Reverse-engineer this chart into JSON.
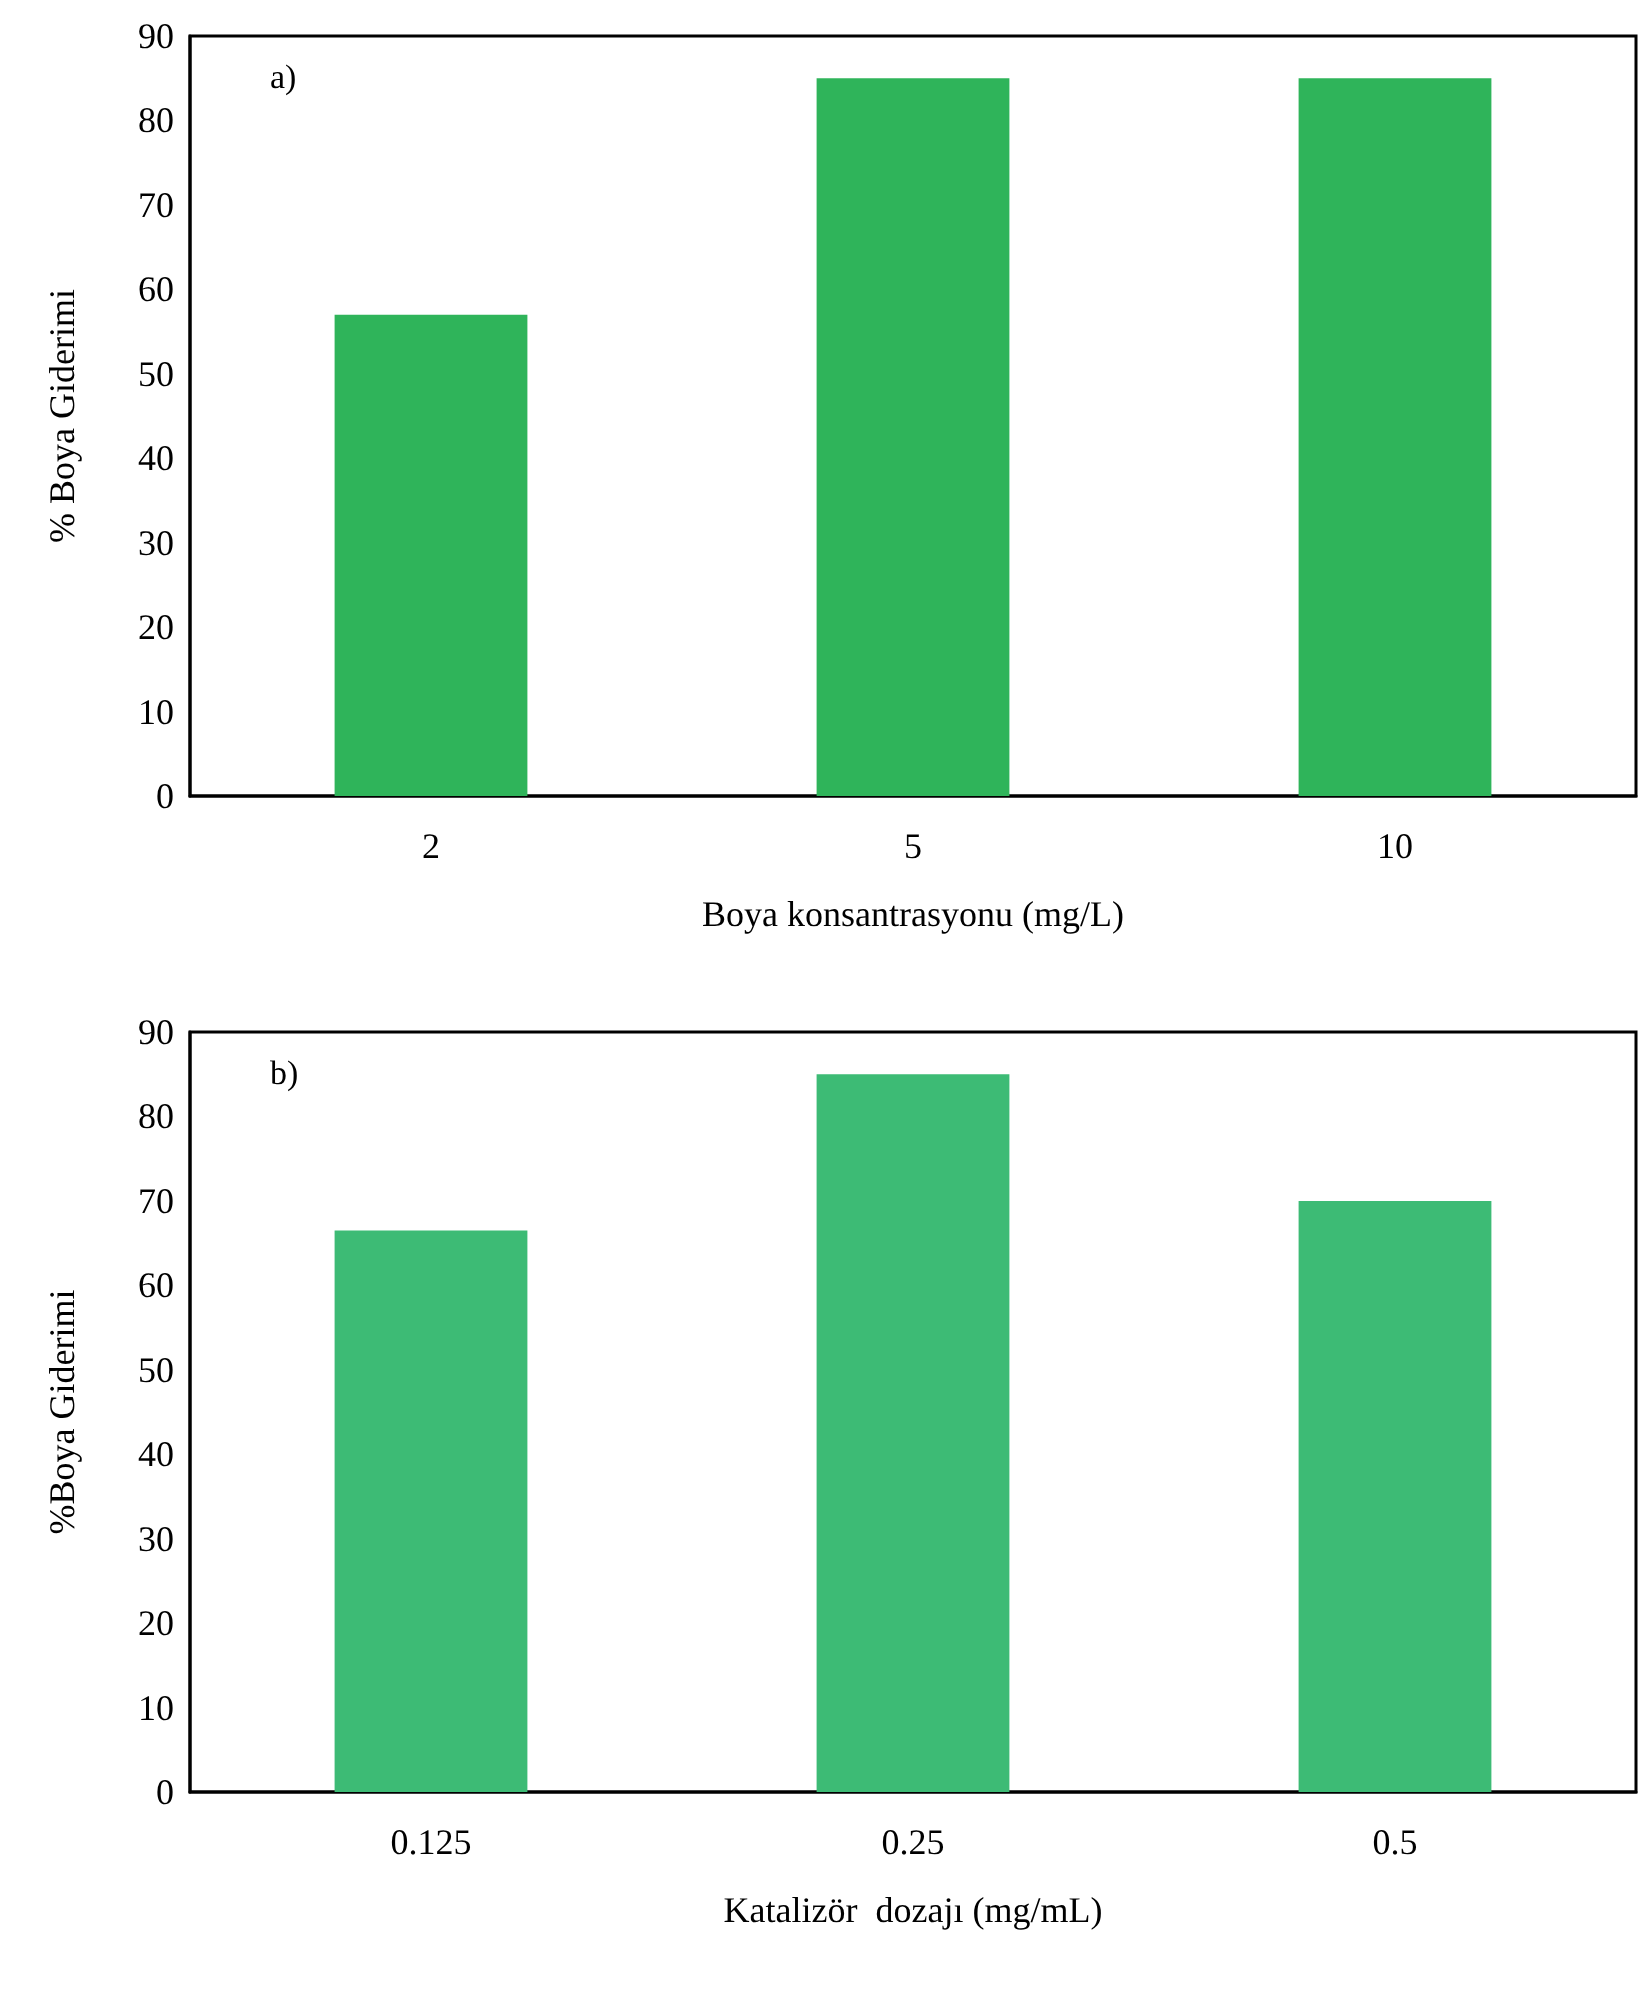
{
  "chart_data": [
    {
      "type": "bar",
      "categories": [
        "2",
        "5",
        "10"
      ],
      "values": [
        57,
        85,
        85
      ],
      "color": "#2fb45a",
      "xlabel": "Boya konsantrasyonu (mg/L)",
      "ylabel": "% Boya Giderimi",
      "ylim": [
        0,
        90
      ],
      "yticks": [
        0,
        10,
        20,
        30,
        40,
        50,
        60,
        70,
        80,
        90
      ],
      "grid": false,
      "annotations": [
        "a)"
      ]
    },
    {
      "type": "bar",
      "categories": [
        "0.125",
        "0.25",
        "0.5"
      ],
      "values": [
        66.5,
        85,
        70
      ],
      "color": "#3dbb75",
      "xlabel": "Katalizör  dozajı (mg/mL)",
      "ylabel": "%Boya Giderimi",
      "ylim": [
        0,
        90
      ],
      "yticks": [
        0,
        10,
        20,
        30,
        40,
        50,
        60,
        70,
        80,
        90
      ],
      "grid": false,
      "annotations": [
        "b)"
      ]
    }
  ]
}
